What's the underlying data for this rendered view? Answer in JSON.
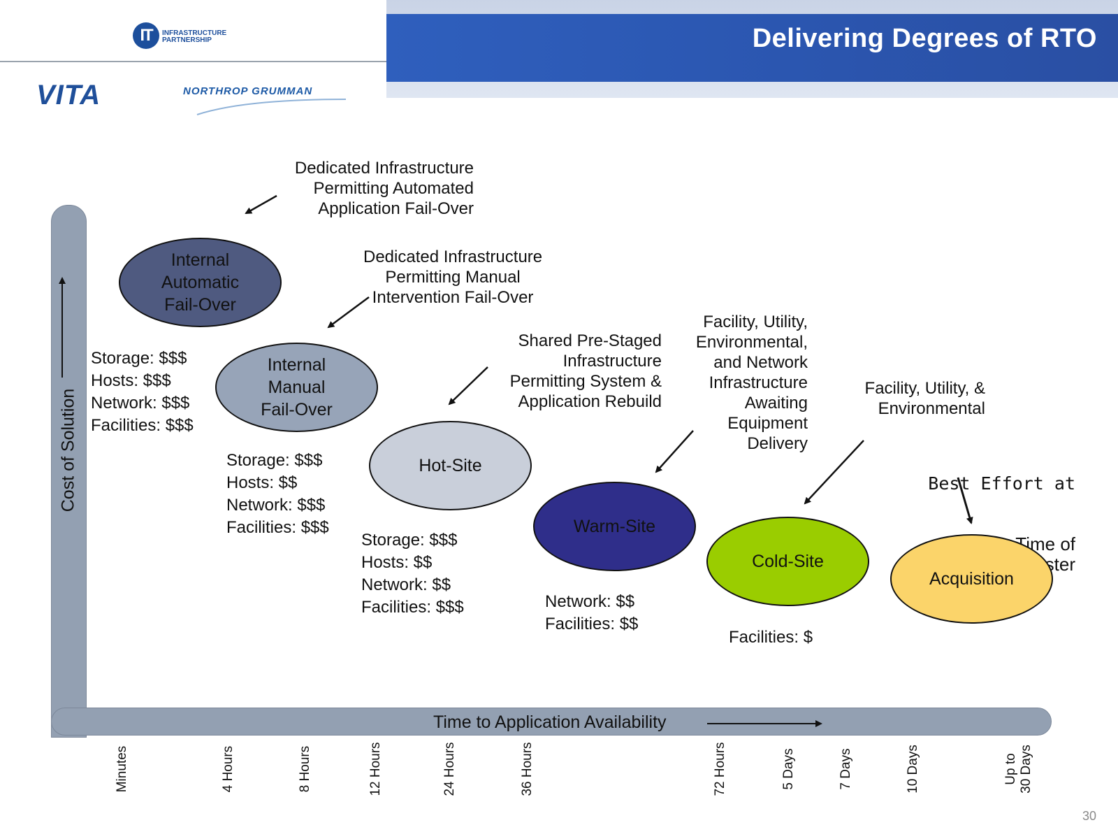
{
  "header": {
    "title": "Delivering Degrees of RTO",
    "it_logo": {
      "mark": "IT",
      "lines": [
        "INFRASTRUCTURE",
        "PARTNERSHIP"
      ]
    },
    "vita_logo": "VITA",
    "ng_logo": "NORTHROP GRUMMAN"
  },
  "axes": {
    "y_title": "Cost of Solution",
    "x_title": "Time to Application Availability",
    "ticks": [
      "Minutes",
      "4 Hours",
      "8 Hours",
      "12 Hours",
      "24 Hours",
      "36 Hours",
      "72 Hours",
      "5 Days",
      "7 Days",
      "10 Days",
      "Up to\n30 Days"
    ]
  },
  "tiers": {
    "internal_automatic": "Internal\nAutomatic\nFail-Over",
    "internal_manual": "Internal\nManual\nFail-Over",
    "hot_site": "Hot-Site",
    "warm_site": "Warm-Site",
    "cold_site": "Cold-Site",
    "acquisition": "Acquisition"
  },
  "descriptions": {
    "dedicated_automated": "Dedicated Infrastructure\nPermitting Automated\nApplication Fail-Over",
    "dedicated_manual": "Dedicated Infrastructure\nPermitting Manual\nIntervention Fail-Over",
    "shared_prestaged": "Shared Pre-Staged\nInfrastructure\nPermitting System &\nApplication Rebuild",
    "facility_network": "Facility, Utility,\nEnvironmental,\nand Network\nInfrastructure\nAwaiting\nEquipment\nDelivery",
    "facility_utility_env": "Facility, Utility, &\nEnvironmental",
    "best_effort_line1": "Best Effort at",
    "best_effort_rest": "Time of\nDisaster"
  },
  "costs": {
    "internal_automatic": "Storage: $$$\nHosts: $$$\nNetwork: $$$\nFacilities: $$$",
    "internal_manual": "Storage: $$$\nHosts: $$\nNetwork: $$$\nFacilities: $$$",
    "hot_site": "Storage: $$$\nHosts: $$\nNetwork: $$\nFacilities: $$$",
    "warm_site": "Network: $$\nFacilities: $$",
    "cold_site": "Facilities: $"
  },
  "colors": {
    "title_bar": "#2f5fbd",
    "axis_bar": "#93a0b2",
    "internal_automatic": "#4f5a80",
    "internal_manual": "#97a4b8",
    "hot_site": "#c9cfda",
    "warm_site": "#2f2e8a",
    "cold_site": "#9acd00",
    "acquisition": "#fbd46a"
  },
  "page_number": "30"
}
